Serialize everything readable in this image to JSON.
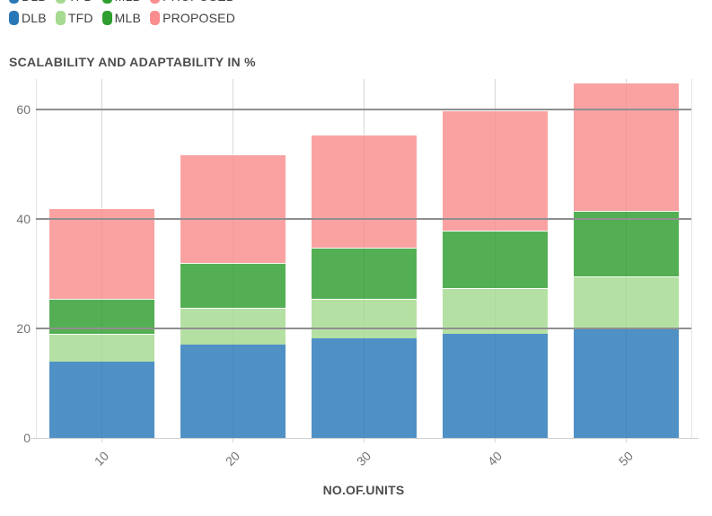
{
  "title": "SCALABILITY AND ADAPTABILITY IN %",
  "legend": {
    "items": [
      {
        "label": "DLB",
        "color": "#2878b8"
      },
      {
        "label": "TFD",
        "color": "#a5da90"
      },
      {
        "label": "MLB",
        "color": "#2f9e2f"
      },
      {
        "label": "PROPOSED",
        "color": "#fa8e8e"
      }
    ]
  },
  "axes": {
    "x_title": "NO.OF.UNITS",
    "x_tick_labels": [
      "10",
      "20",
      "30",
      "40",
      "50"
    ],
    "y_tick_labels": [
      "0",
      "20",
      "40",
      "60"
    ]
  },
  "chart_data": {
    "type": "bar",
    "stacked": true,
    "title": "SCALABILITY AND ADAPTABILITY IN %",
    "xlabel": "NO.OF.UNITS",
    "ylabel": "",
    "categories": [
      "10",
      "20",
      "30",
      "40",
      "50"
    ],
    "series": [
      {
        "name": "DLB",
        "color": "#2878b8",
        "values": [
          14.0,
          17.0,
          18.2,
          19.0,
          20.1
        ]
      },
      {
        "name": "TFD",
        "color": "#a5da90",
        "values": [
          5.0,
          6.7,
          7.2,
          8.3,
          9.4
        ]
      },
      {
        "name": "MLB",
        "color": "#2f9e2f",
        "values": [
          6.4,
          8.3,
          9.3,
          10.6,
          12.0
        ]
      },
      {
        "name": "PROPOSED",
        "color": "#fa8e8e",
        "values": [
          16.6,
          19.8,
          20.6,
          21.9,
          23.3
        ]
      }
    ],
    "stack_totals": [
      42.0,
      51.8,
      55.3,
      59.8,
      64.8
    ],
    "ylim": [
      0,
      65.5
    ],
    "yticks": [
      0,
      20,
      40,
      60
    ],
    "grid": true,
    "legend_position": "top",
    "bar_opacity": 0.82
  },
  "colors": {
    "major_grid": "#8f8f8f",
    "minor_grid": "#d6d6d6",
    "baseline": "#cfcfcf",
    "axis_text": "#737373",
    "title_text": "#4d4d4d"
  }
}
